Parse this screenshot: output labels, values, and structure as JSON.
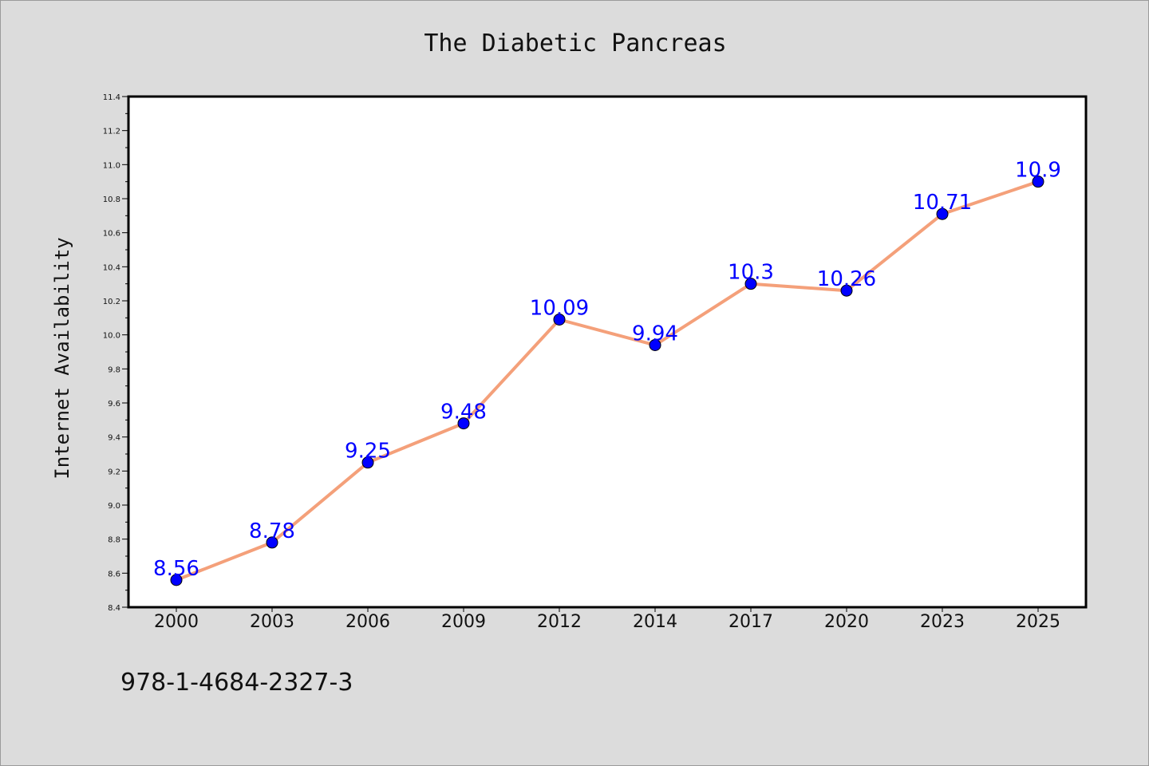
{
  "chart_data": {
    "type": "line",
    "title": "The Diabetic Pancreas",
    "xlabel": "",
    "ylabel": "Internet Availability",
    "categories": [
      "2000",
      "2003",
      "2006",
      "2009",
      "2012",
      "2014",
      "2017",
      "2020",
      "2023",
      "2025"
    ],
    "series": [
      {
        "values": [
          8.56,
          8.78,
          9.25,
          9.48,
          10.09,
          9.94,
          10.3,
          10.26,
          10.71,
          10.9
        ]
      }
    ],
    "data_labels": [
      "8.56",
      "8.78",
      "9.25",
      "9.48",
      "10.09",
      "9.94",
      "10.3",
      "10.26",
      "10.71",
      "10.9"
    ],
    "ylim": [
      8.4,
      11.4
    ],
    "y_ticks": [
      "8.4",
      "8.6",
      "8.8",
      "9.0",
      "9.2",
      "9.4",
      "9.6",
      "9.8",
      "10.0",
      "10.2",
      "10.4",
      "10.6",
      "10.8",
      "11.0",
      "11.2",
      "11.4"
    ],
    "grid": false,
    "legend": "none",
    "colors": {
      "line": "#f4a07a",
      "marker": "#0000ff",
      "data_label": "#0000ff",
      "background": "#dcdcdc",
      "plot_background": "#ffffff"
    }
  },
  "footer": {
    "code": "978-1-4684-2327-3"
  }
}
